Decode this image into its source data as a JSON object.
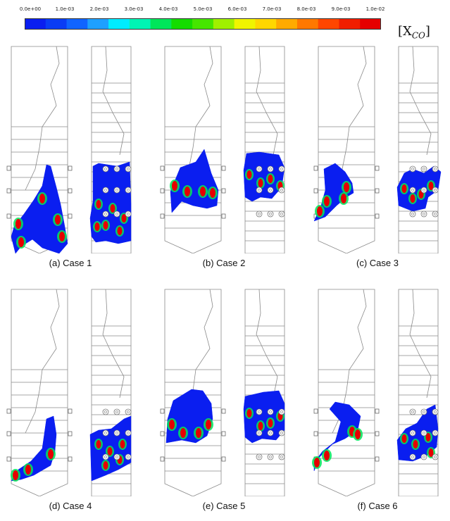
{
  "colorbar": {
    "ticks": [
      "0.0e+00",
      "1.0e-03",
      "2.0e-03",
      "3.0e-03",
      "4.0e-03",
      "5.0e-03",
      "6.0e-03",
      "7.0e-03",
      "8.0e-03",
      "9.0e-03",
      "1.0e-02"
    ],
    "colors": [
      "#0a1ef0",
      "#0a3cf5",
      "#1064ff",
      "#1ea0ff",
      "#00ecff",
      "#00f5b4",
      "#00e65a",
      "#14dc00",
      "#46e600",
      "#a0f000",
      "#f0f500",
      "#ffd700",
      "#ffaa00",
      "#ff7800",
      "#ff4600",
      "#f01e00",
      "#e60000"
    ],
    "unit": "[X",
    "unit_sub": "CO",
    "unit_close": "]"
  },
  "panels": [
    {
      "caption": "(a)  Case 1"
    },
    {
      "caption": "(b)  Case 2"
    },
    {
      "caption": "(c)  Case 3"
    },
    {
      "caption": "(d)  Case 4"
    },
    {
      "caption": "(e)  Case 5"
    },
    {
      "caption": "(f)  Case 6"
    }
  ]
}
